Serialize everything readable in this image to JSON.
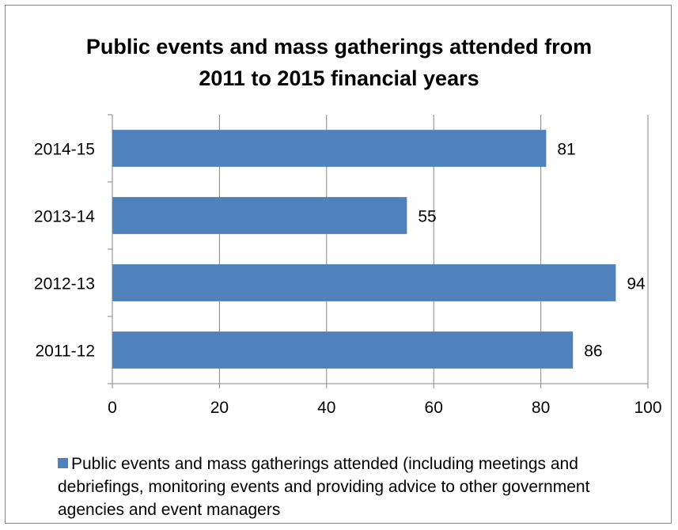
{
  "chart_data": {
    "type": "bar",
    "orientation": "horizontal",
    "title_lines": [
      "Public events and mass gatherings attended from",
      "2011 to 2015 financial years"
    ],
    "categories": [
      "2014-15",
      "2013-14",
      "2012-13",
      "2011-12"
    ],
    "series": [
      {
        "name": "Public events and mass gatherings attended (including meetings and debriefings, monitoring events and providing advice to other government agencies and event managers",
        "values": [
          81,
          55,
          94,
          86
        ],
        "color": "#4F81BD"
      }
    ],
    "xlim": [
      0,
      100
    ],
    "xticks": [
      0,
      20,
      40,
      60,
      80,
      100
    ],
    "grid": "vertical",
    "legend_position": "bottom",
    "data_labels": true
  },
  "colors": {
    "bar": "#4F81BD",
    "grid": "#868686",
    "axis": "#868686"
  }
}
